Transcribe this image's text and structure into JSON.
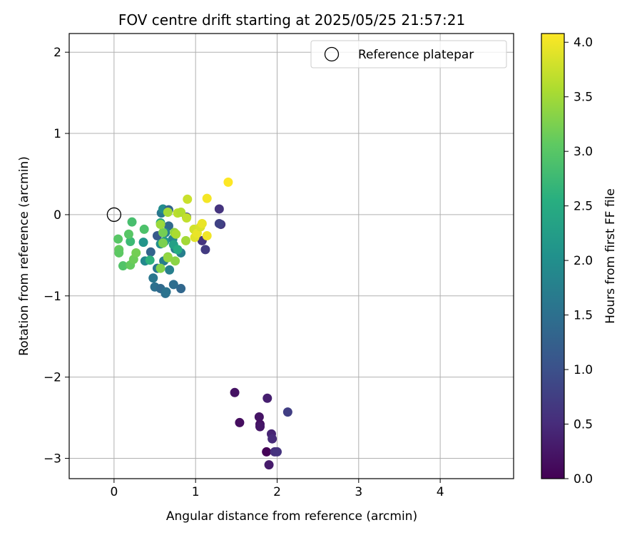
{
  "chart_data": {
    "type": "scatter",
    "title": "FOV centre drift starting at 2025/05/25 21:57:21",
    "xlabel": "Angular distance from reference (arcmin)",
    "ylabel": "Rotation from reference (arcmin)",
    "xlim": [
      -0.55,
      4.9
    ],
    "ylim": [
      -3.25,
      2.23
    ],
    "xticks": [
      0,
      1,
      2,
      3,
      4
    ],
    "yticks": [
      -3,
      -2,
      -1,
      0,
      1,
      2
    ],
    "grid": true,
    "legend": {
      "placement": "upper right",
      "entries": [
        {
          "label": "Reference platepar",
          "marker": "open-circle"
        }
      ]
    },
    "reference_point": {
      "x": 0,
      "y": 0
    },
    "colorbar": {
      "label": "Hours from first FF file",
      "colormap": "viridis",
      "range": [
        0,
        4.08
      ],
      "ticks": [
        "0.0",
        "0.5",
        "1.0",
        "1.5",
        "2.0",
        "2.5",
        "3.0",
        "3.5",
        "4.0"
      ]
    },
    "points": [
      {
        "x": 1.87,
        "y": -2.92,
        "c": 0.02
      },
      {
        "x": 1.9,
        "y": -3.08,
        "c": 0.3
      },
      {
        "x": 1.48,
        "y": -2.19,
        "c": 0.2
      },
      {
        "x": 1.54,
        "y": -2.56,
        "c": 0.15
      },
      {
        "x": 1.78,
        "y": -2.49,
        "c": 0.22
      },
      {
        "x": 1.79,
        "y": -2.58,
        "c": 0.18
      },
      {
        "x": 1.79,
        "y": -2.61,
        "c": 0.25
      },
      {
        "x": 1.88,
        "y": -2.26,
        "c": 0.35
      },
      {
        "x": 1.93,
        "y": -2.7,
        "c": 0.4
      },
      {
        "x": 1.94,
        "y": -2.76,
        "c": 0.5
      },
      {
        "x": 1.97,
        "y": -2.92,
        "c": 0.55
      },
      {
        "x": 2.0,
        "y": -2.92,
        "c": 0.6
      },
      {
        "x": 2.13,
        "y": -2.43,
        "c": 0.75
      },
      {
        "x": 1.29,
        "y": 0.07,
        "c": 0.6
      },
      {
        "x": 1.31,
        "y": -0.12,
        "c": 0.65
      },
      {
        "x": 1.29,
        "y": -0.11,
        "c": 0.8
      },
      {
        "x": 1.12,
        "y": -0.43,
        "c": 0.7
      },
      {
        "x": 1.08,
        "y": -0.32,
        "c": 0.6
      },
      {
        "x": 0.89,
        "y": -0.03,
        "c": 0.9
      },
      {
        "x": 0.53,
        "y": -0.26,
        "c": 1.15
      },
      {
        "x": 0.45,
        "y": -0.46,
        "c": 1.3
      },
      {
        "x": 0.5,
        "y": -0.89,
        "c": 1.5
      },
      {
        "x": 0.48,
        "y": -0.78,
        "c": 1.6
      },
      {
        "x": 0.57,
        "y": -0.91,
        "c": 1.4
      },
      {
        "x": 0.63,
        "y": -0.97,
        "c": 1.5
      },
      {
        "x": 0.64,
        "y": -0.95,
        "c": 1.55
      },
      {
        "x": 0.73,
        "y": -0.86,
        "c": 1.45
      },
      {
        "x": 0.82,
        "y": -0.91,
        "c": 1.35
      },
      {
        "x": 0.53,
        "y": -0.66,
        "c": 1.6
      },
      {
        "x": 0.61,
        "y": -0.57,
        "c": 1.7
      },
      {
        "x": 0.68,
        "y": -0.68,
        "c": 1.75
      },
      {
        "x": 0.67,
        "y": -0.14,
        "c": 1.4
      },
      {
        "x": 0.58,
        "y": 0.02,
        "c": 1.6
      },
      {
        "x": 0.6,
        "y": 0.07,
        "c": 1.95
      },
      {
        "x": 0.67,
        "y": 0.06,
        "c": 1.3
      },
      {
        "x": 0.63,
        "y": -0.22,
        "c": 1.8
      },
      {
        "x": 0.72,
        "y": -0.3,
        "c": 1.85
      },
      {
        "x": 0.75,
        "y": -0.42,
        "c": 1.65
      },
      {
        "x": 0.82,
        "y": -0.47,
        "c": 1.75
      },
      {
        "x": 0.38,
        "y": -0.57,
        "c": 1.9
      },
      {
        "x": 0.36,
        "y": -0.34,
        "c": 2.1
      },
      {
        "x": 0.57,
        "y": -0.36,
        "c": 2.0
      },
      {
        "x": 0.62,
        "y": -0.33,
        "c": 2.2
      },
      {
        "x": 0.57,
        "y": -0.1,
        "c": 2.4
      },
      {
        "x": 0.73,
        "y": -0.37,
        "c": 2.3
      },
      {
        "x": 0.44,
        "y": -0.56,
        "c": 2.6
      },
      {
        "x": 0.78,
        "y": -0.43,
        "c": 2.5
      },
      {
        "x": 0.2,
        "y": -0.33,
        "c": 2.75
      },
      {
        "x": 0.22,
        "y": -0.09,
        "c": 2.85
      },
      {
        "x": 0.37,
        "y": -0.18,
        "c": 2.9
      },
      {
        "x": 0.18,
        "y": -0.24,
        "c": 3.0
      },
      {
        "x": 0.05,
        "y": -0.3,
        "c": 3.0
      },
      {
        "x": 0.06,
        "y": -0.43,
        "c": 3.1
      },
      {
        "x": 0.06,
        "y": -0.47,
        "c": 3.05
      },
      {
        "x": 0.11,
        "y": -0.63,
        "c": 2.95
      },
      {
        "x": 0.2,
        "y": -0.62,
        "c": 3.1
      },
      {
        "x": 0.24,
        "y": -0.55,
        "c": 3.15
      },
      {
        "x": 0.27,
        "y": -0.47,
        "c": 3.2
      },
      {
        "x": 0.57,
        "y": -0.66,
        "c": 3.3
      },
      {
        "x": 0.6,
        "y": -0.35,
        "c": 3.25
      },
      {
        "x": 0.6,
        "y": -0.22,
        "c": 3.2
      },
      {
        "x": 0.66,
        "y": -0.52,
        "c": 3.3
      },
      {
        "x": 0.66,
        "y": -0.53,
        "c": 3.4
      },
      {
        "x": 0.75,
        "y": -0.57,
        "c": 3.35
      },
      {
        "x": 0.57,
        "y": -0.12,
        "c": 3.45
      },
      {
        "x": 0.66,
        "y": 0.03,
        "c": 3.5
      },
      {
        "x": 0.74,
        "y": -0.22,
        "c": 3.4
      },
      {
        "x": 0.76,
        "y": -0.24,
        "c": 3.55
      },
      {
        "x": 0.78,
        "y": 0.02,
        "c": 3.65
      },
      {
        "x": 0.82,
        "y": 0.03,
        "c": 3.6
      },
      {
        "x": 0.88,
        "y": -0.32,
        "c": 3.5
      },
      {
        "x": 0.89,
        "y": -0.04,
        "c": 3.7
      },
      {
        "x": 0.9,
        "y": 0.19,
        "c": 3.75
      },
      {
        "x": 0.98,
        "y": -0.18,
        "c": 3.8
      },
      {
        "x": 0.99,
        "y": -0.28,
        "c": 3.9
      },
      {
        "x": 1.02,
        "y": -0.23,
        "c": 3.95
      },
      {
        "x": 1.06,
        "y": -0.15,
        "c": 3.85
      },
      {
        "x": 1.08,
        "y": -0.11,
        "c": 3.95
      },
      {
        "x": 1.14,
        "y": -0.26,
        "c": 4.0
      },
      {
        "x": 1.14,
        "y": 0.2,
        "c": 4.02
      },
      {
        "x": 1.4,
        "y": 0.4,
        "c": 4.08
      }
    ]
  }
}
